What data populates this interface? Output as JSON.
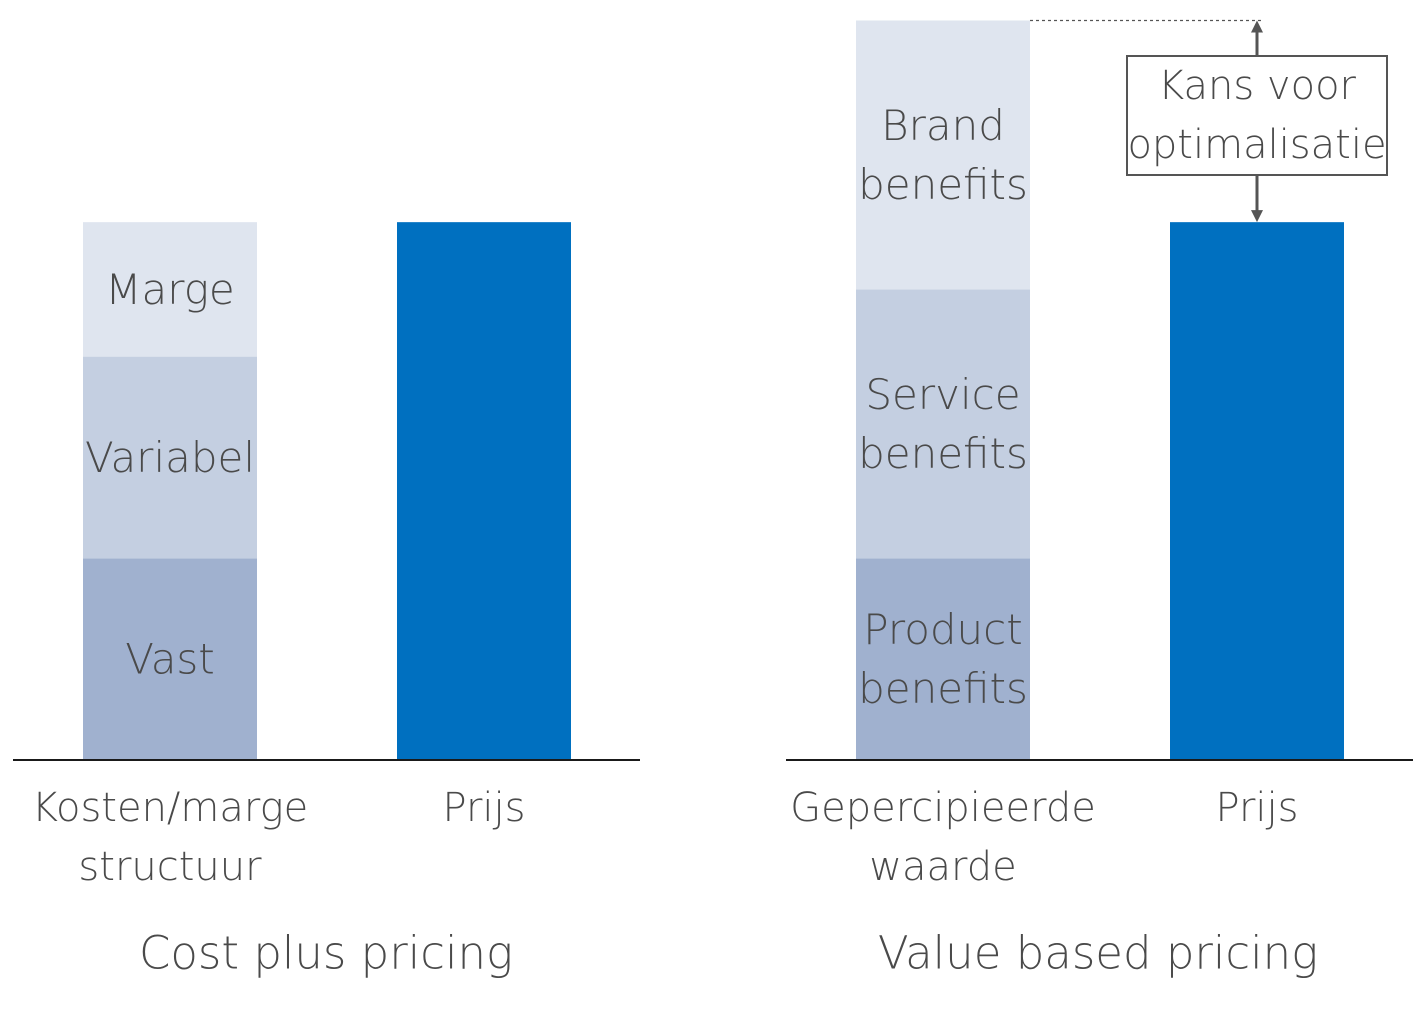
{
  "chart_data": [
    {
      "type": "bar",
      "stacked": true,
      "title": "Cost plus pricing",
      "categories": [
        "Kosten/marge structuur",
        "Prijs"
      ],
      "category_lines": [
        [
          "Kosten/marge",
          "structuur"
        ],
        [
          "Prijs"
        ]
      ],
      "ylim": [
        0,
        100
      ],
      "grid": false,
      "legend": "none",
      "bars": [
        {
          "category": "Kosten/marge structuur",
          "segments": [
            {
              "label": "Vast",
              "lines": [
                "Vast"
              ],
              "value": 27,
              "color": "#a0b1cf"
            },
            {
              "label": "Variabel",
              "lines": [
                "Variabel"
              ],
              "value": 27,
              "color": "#c4cfe1"
            },
            {
              "label": "Marge",
              "lines": [
                "Marge"
              ],
              "value": 18,
              "color": "#dfe5ef"
            }
          ]
        },
        {
          "category": "Prijs",
          "segments": [
            {
              "label": "",
              "lines": [],
              "value": 72,
              "color": "#0070c0"
            }
          ]
        }
      ]
    },
    {
      "type": "bar",
      "stacked": true,
      "title": "Value based pricing",
      "categories": [
        "Gepercipieerde waarde",
        "Prijs"
      ],
      "category_lines": [
        [
          "Gepercipieerde",
          "waarde"
        ],
        [
          "Prijs"
        ]
      ],
      "ylim": [
        0,
        100
      ],
      "grid": false,
      "legend": "none",
      "bars": [
        {
          "category": "Gepercipieerde waarde",
          "segments": [
            {
              "label": "Product benefits",
              "lines": [
                "Product",
                "benefits"
              ],
              "value": 27,
              "color": "#a0b1cf"
            },
            {
              "label": "Service benefits",
              "lines": [
                "Service",
                "benefits"
              ],
              "value": 36,
              "color": "#c4cfe1"
            },
            {
              "label": "Brand benefits",
              "lines": [
                "Brand",
                "benefits"
              ],
              "value": 36,
              "color": "#dfe5ef"
            }
          ]
        },
        {
          "category": "Prijs",
          "segments": [
            {
              "label": "",
              "lines": [],
              "value": 72,
              "color": "#0070c0"
            }
          ]
        }
      ],
      "annotation": {
        "text": "Kans voor optimalisatie",
        "lines": [
          "Kans voor",
          "optimalisatie"
        ]
      }
    }
  ],
  "colors": {
    "text": "#4a4a4a",
    "axis": "#1a1a1a",
    "arrow": "#555555",
    "callout_border": "#555555"
  }
}
